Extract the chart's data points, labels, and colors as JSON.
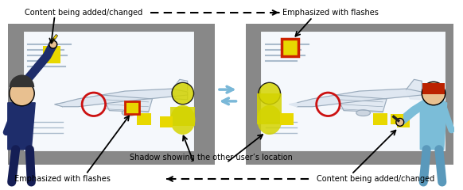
{
  "fig_width": 5.82,
  "fig_height": 2.4,
  "dpi": 100,
  "bg_color": "#ffffff",
  "gray_panel": "#888888",
  "screen_bg": "#e8eef5",
  "screen_inner": "#f5f8fc",
  "yellow_note": "#e8d800",
  "red_border": "#cc2200",
  "blue_arrow_color": "#7ab8d8",
  "navy": "#1e2d6b",
  "skin": "#e8c090",
  "teal_person": "#7bbdd8",
  "red_hair": "#bb2200",
  "aircraft_line": "#99aabb",
  "aircraft_fill": "#dde6f0",
  "shadow_yellow": "#d4d400",
  "text_line_color": "#aabbcc",
  "annotations": {
    "top_left_label": "Content being added/changed",
    "top_right_label": "Emphasized with flashes",
    "bottom_left_label": "Emphasized with flashes",
    "bottom_right_label": "Content being added/changed",
    "middle_label": "Shadow showing the other user’s location"
  }
}
